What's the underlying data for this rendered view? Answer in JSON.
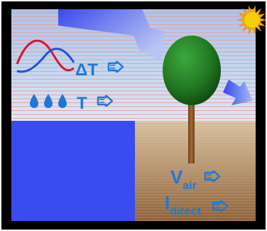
{
  "labels": {
    "delta_t": "ΔT",
    "t": "T",
    "v_main": "V",
    "v_sub": "air",
    "i_main": "I",
    "i_sub": "direct"
  },
  "icons": {
    "sun": "sun-icon",
    "tree": "tree-icon",
    "wave": "temperature-wave-icon",
    "drops": "water-drops-icon",
    "arrow": "decrease-arrow-icon"
  },
  "colors": {
    "frame": "#000000",
    "sky_top": "#a4c4ec",
    "sky_bottom": "#dce8f4",
    "stripe": "#e8a0a8",
    "ground_top": "#dcc4a4",
    "ground_bottom": "#8a6038",
    "water": "#3a4cf0",
    "label_blue": "#1c78d8",
    "tree_green": "#2a8a2a",
    "trunk": "#8b5a2b",
    "sun": "#f8c000",
    "wave_red": "#e01030",
    "wave_blue": "#2050e0",
    "beam": "#4a56f0"
  }
}
